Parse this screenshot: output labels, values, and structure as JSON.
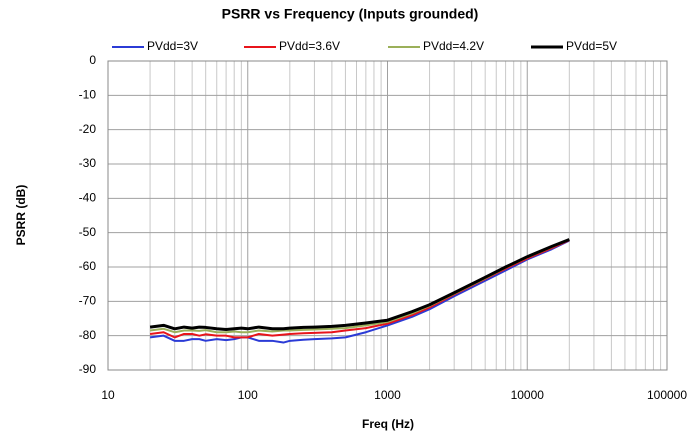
{
  "chart_data": {
    "type": "line",
    "title": "PSRR vs Frequency (Inputs grounded)",
    "x_label": "Freq (Hz)",
    "y_label": "PSRR (dB)",
    "x": [
      20,
      25,
      30,
      35,
      40,
      45,
      50,
      60,
      70,
      80,
      90,
      100,
      120,
      150,
      180,
      200,
      250,
      300,
      400,
      500,
      700,
      1000,
      1500,
      2000,
      3000,
      5000,
      7000,
      10000,
      15000,
      20000
    ],
    "series": [
      {
        "name": "PVdd=3V",
        "color": "#2b3bd6",
        "values": [
          -80.5,
          -80,
          -81.5,
          -81.5,
          -81,
          -81,
          -81.5,
          -81,
          -81.3,
          -81,
          -80.5,
          -80.5,
          -81.5,
          -81.5,
          -82,
          -81.5,
          -81.2,
          -81,
          -80.8,
          -80.5,
          -79,
          -77,
          -74.5,
          -72.3,
          -68.5,
          -64,
          -61,
          -57.8,
          -54.8,
          -52.3
        ]
      },
      {
        "name": "PVdd=3.6V",
        "color": "#e8141b",
        "values": [
          -79.5,
          -79,
          -80.5,
          -79.5,
          -79.5,
          -80,
          -79.6,
          -80,
          -80,
          -80.5,
          -80.5,
          -80.5,
          -79.5,
          -80,
          -79.7,
          -79.5,
          -79.3,
          -79.2,
          -79,
          -78.5,
          -77.8,
          -76.5,
          -74,
          -71.8,
          -68,
          -63.5,
          -60.5,
          -57.5,
          -54.5,
          -52.2
        ]
      },
      {
        "name": "PVdd=4.2V",
        "color": "#9bb059",
        "values": [
          -78.5,
          -78,
          -79,
          -78.5,
          -78.5,
          -78.6,
          -78.4,
          -79,
          -79,
          -78.8,
          -79,
          -79,
          -78.5,
          -78.8,
          -78.5,
          -78.5,
          -78.3,
          -78.2,
          -78,
          -77.8,
          -77,
          -76,
          -73.5,
          -71.3,
          -67.8,
          -63.3,
          -60.2,
          -57.2,
          -54.2,
          -52
        ]
      },
      {
        "name": "PVdd=5V",
        "color": "#000000",
        "values": [
          -77.5,
          -77,
          -78,
          -77.5,
          -77.8,
          -77.5,
          -77.6,
          -78,
          -78.2,
          -78,
          -77.8,
          -78,
          -77.5,
          -78,
          -78,
          -77.8,
          -77.6,
          -77.5,
          -77.3,
          -77,
          -76.3,
          -75.5,
          -73,
          -71,
          -67.5,
          -63,
          -60,
          -57,
          -54,
          -52
        ]
      }
    ],
    "x_log": true,
    "xlim": [
      10,
      100000
    ],
    "xticks": [
      10,
      100,
      1000,
      10000,
      100000
    ],
    "xminorticks": [
      20,
      30,
      40,
      50,
      60,
      70,
      80,
      90,
      200,
      300,
      400,
      500,
      600,
      700,
      800,
      900,
      2000,
      3000,
      4000,
      5000,
      6000,
      7000,
      8000,
      9000,
      20000,
      30000,
      40000,
      50000,
      60000,
      70000,
      80000,
      90000
    ],
    "ylim": [
      -90,
      0
    ],
    "yticks": [
      0,
      -10,
      -20,
      -30,
      -40,
      -50,
      -60,
      -70,
      -80,
      -90
    ],
    "grid": true,
    "legend": "top"
  }
}
